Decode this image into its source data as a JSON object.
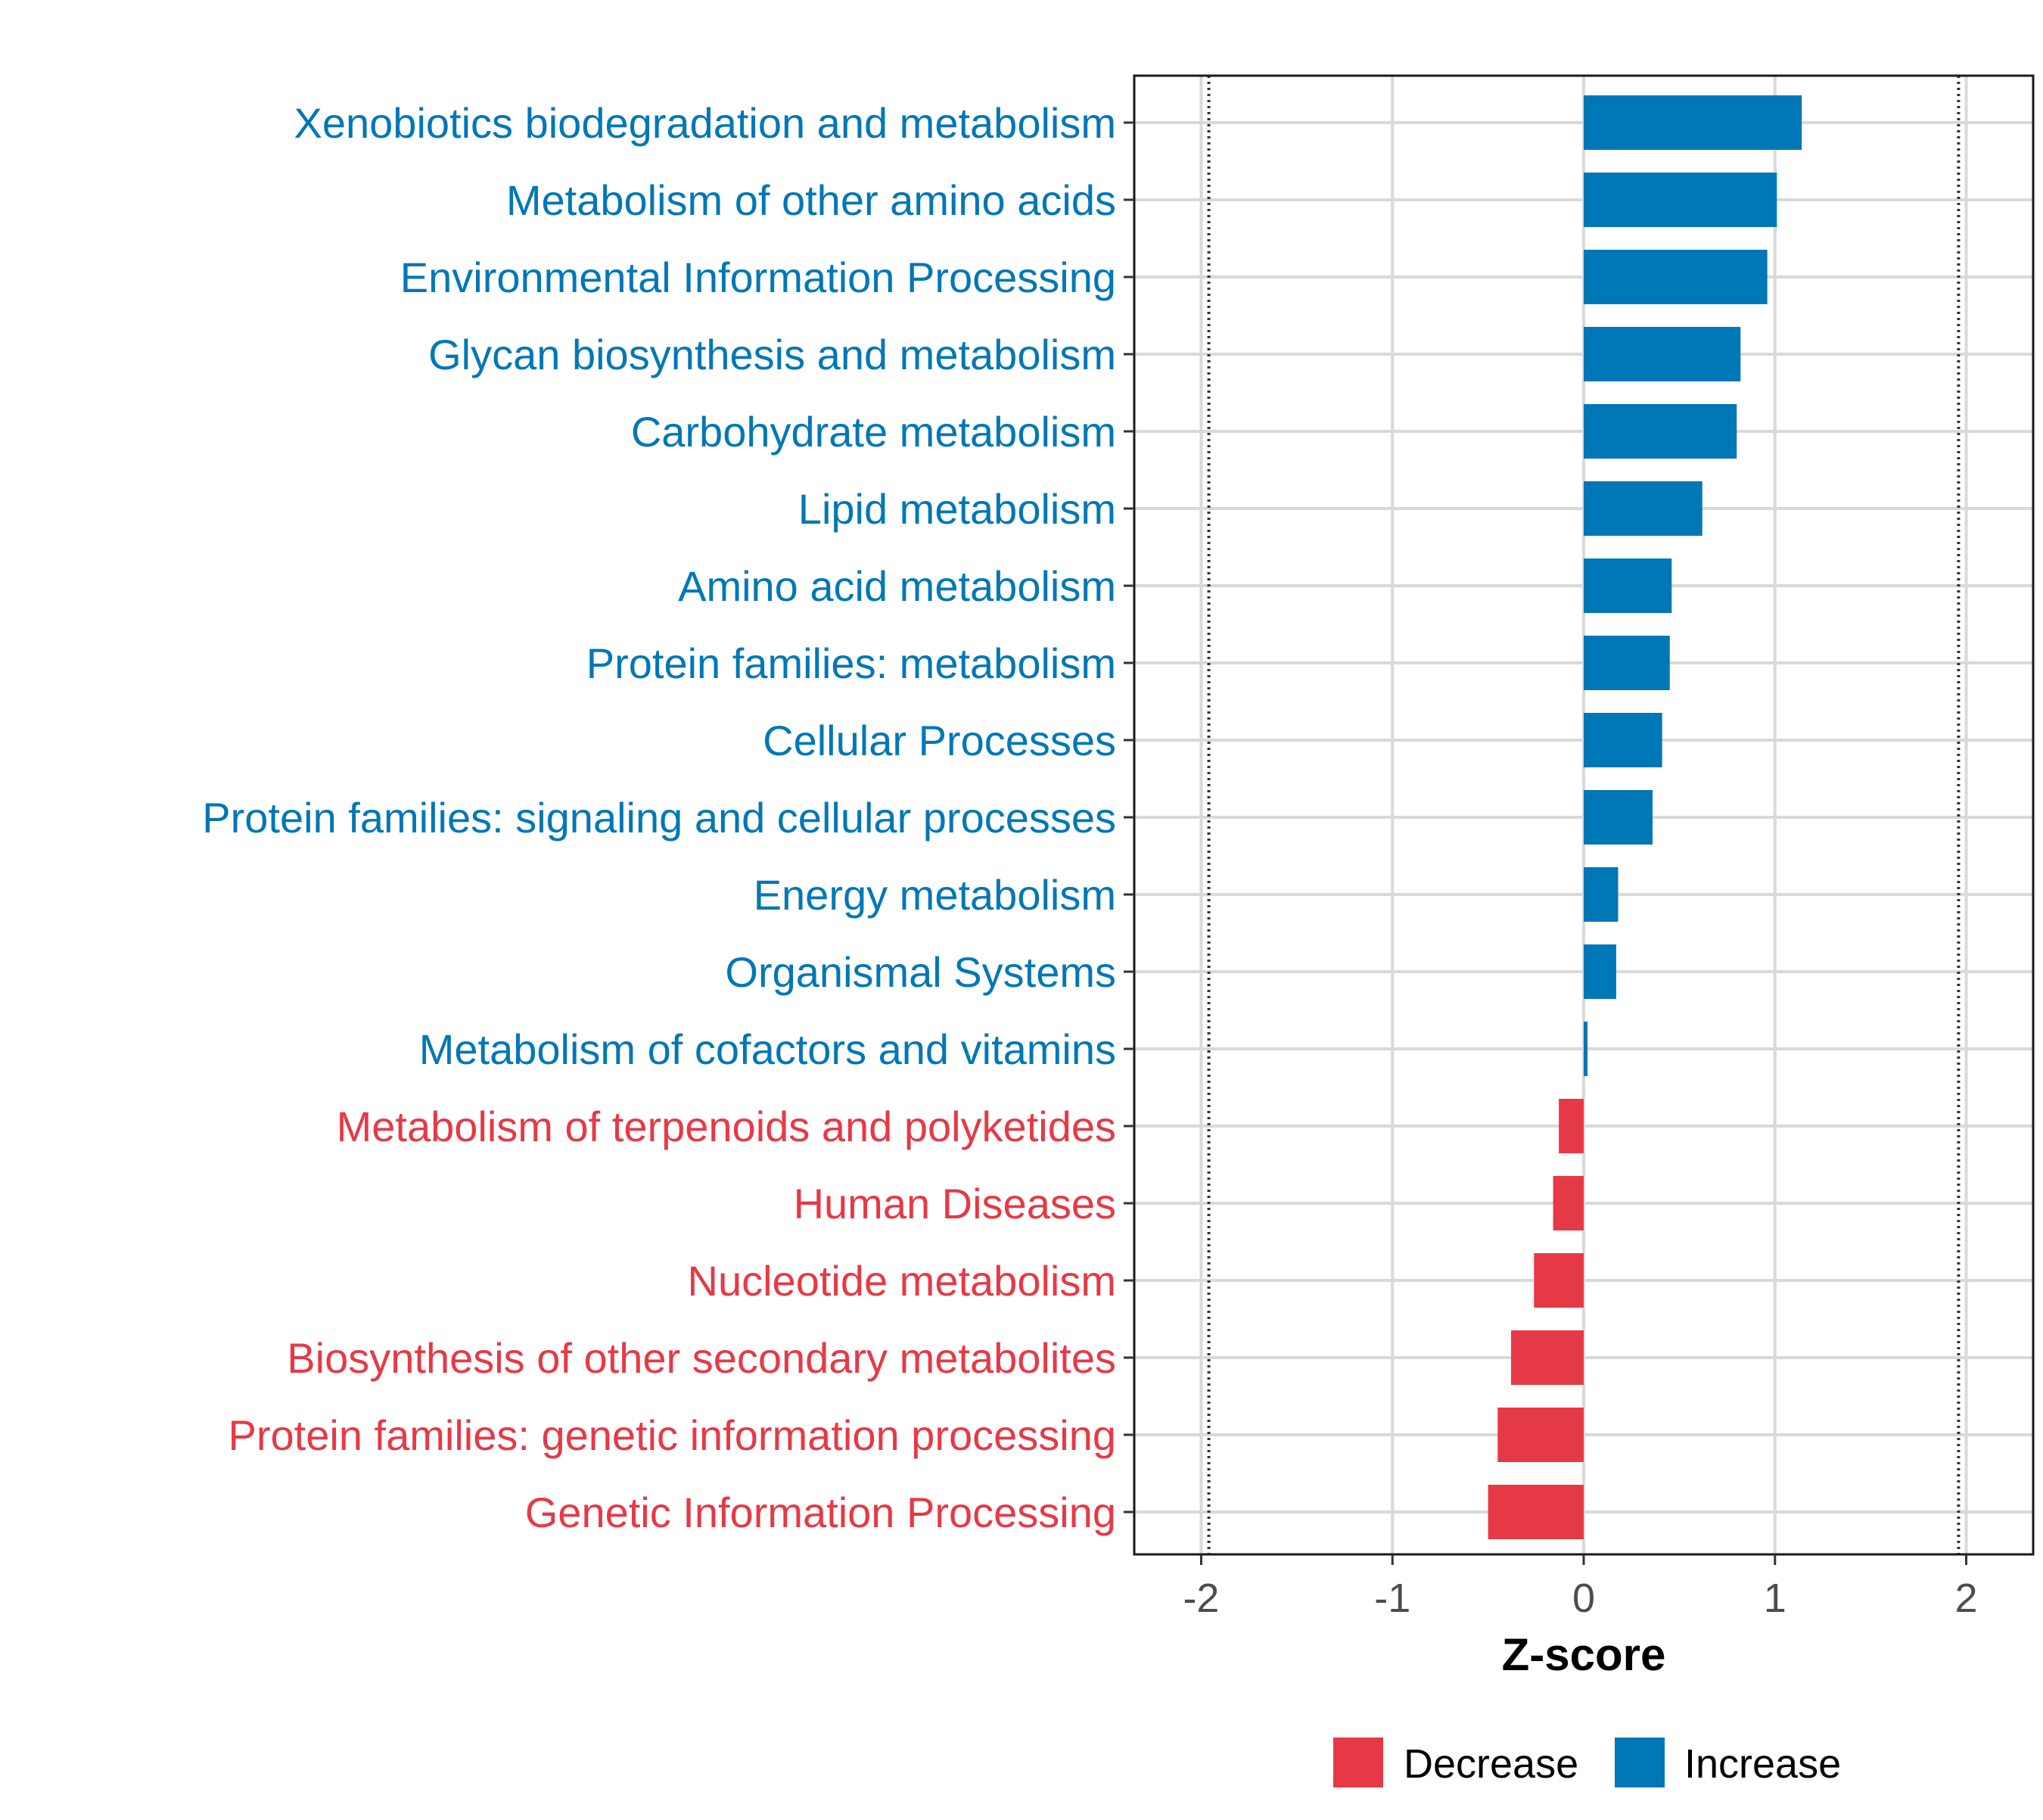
{
  "chart_data": {
    "type": "bar",
    "orientation": "horizontal",
    "xlabel": "Z-score",
    "xlim": [
      -2.35,
      2.35
    ],
    "xticks": [
      -2,
      -1,
      0,
      1,
      2
    ],
    "xtick_labels": [
      "-2",
      "-1",
      "0",
      "1",
      "2"
    ],
    "reference_lines": [
      -1.96,
      1.96
    ],
    "grid": true,
    "colors": {
      "Decrease": "#e63946",
      "Increase": "#0077b6"
    },
    "categories": [
      "Xenobiotics biodegradation and metabolism",
      "Metabolism of other amino acids",
      "Environmental Information Processing",
      "Glycan biosynthesis and metabolism",
      "Carbohydrate metabolism",
      "Lipid metabolism",
      "Amino acid metabolism",
      "Protein families: metabolism",
      "Cellular Processes",
      "Protein families: signaling and cellular processes",
      "Energy metabolism",
      "Organismal Systems",
      "Metabolism of cofactors and vitamins",
      "Metabolism of terpenoids and polyketides",
      "Human Diseases",
      "Nucleotide metabolism",
      "Biosynthesis of other secondary metabolites",
      "Protein families: genetic information processing",
      "Genetic Information Processing"
    ],
    "values": [
      1.14,
      1.01,
      0.96,
      0.82,
      0.8,
      0.62,
      0.46,
      0.45,
      0.41,
      0.36,
      0.18,
      0.17,
      0.02,
      -0.13,
      -0.16,
      -0.26,
      -0.38,
      -0.45,
      -0.5
    ],
    "groups": [
      "Increase",
      "Increase",
      "Increase",
      "Increase",
      "Increase",
      "Increase",
      "Increase",
      "Increase",
      "Increase",
      "Increase",
      "Increase",
      "Increase",
      "Increase",
      "Decrease",
      "Decrease",
      "Decrease",
      "Decrease",
      "Decrease",
      "Decrease"
    ],
    "legend": {
      "position": "bottom",
      "entries": [
        {
          "label": "Decrease",
          "color": "#e63946"
        },
        {
          "label": "Increase",
          "color": "#0077b6"
        }
      ]
    }
  }
}
